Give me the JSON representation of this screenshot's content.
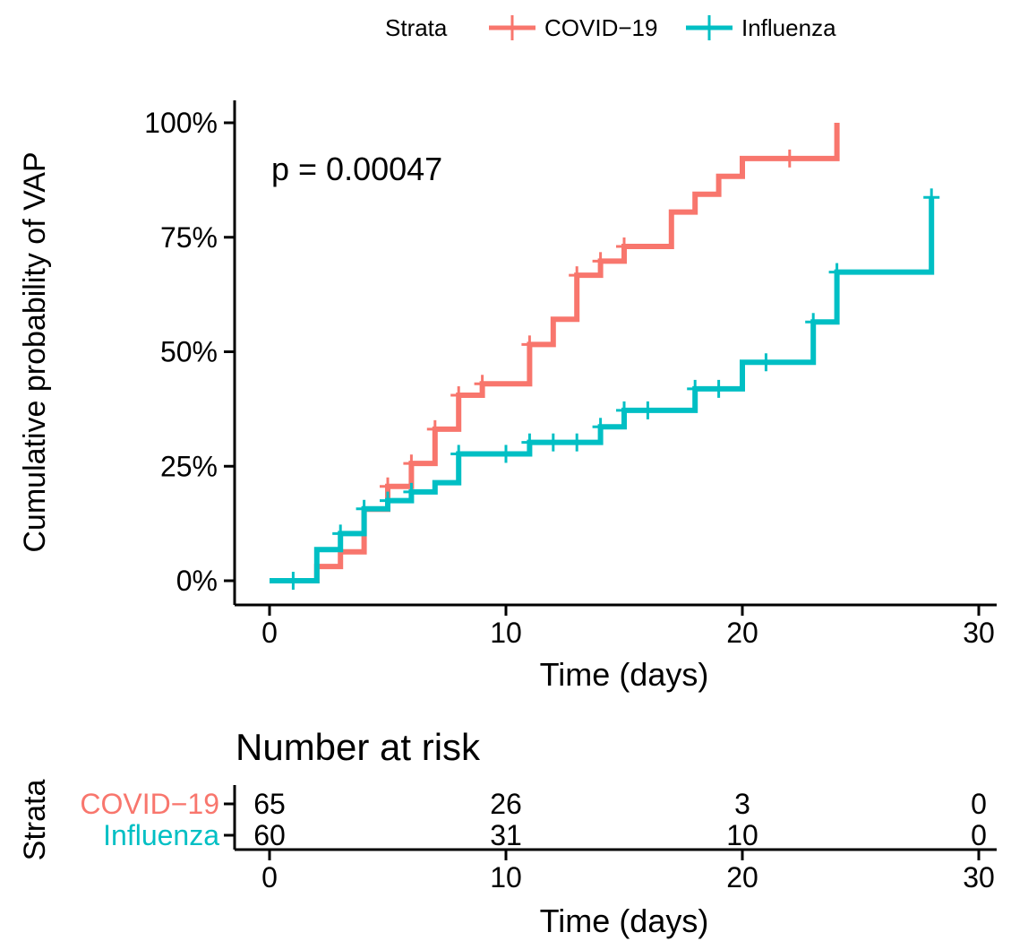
{
  "chart_data": {
    "type": "line",
    "subtype": "kaplan-meier-cumulative-incidence",
    "ylabel": "Cumulative probability of VAP",
    "xlabel": "Time (days)",
    "xlim": [
      0,
      30
    ],
    "ylim": [
      0,
      1
    ],
    "x_ticks": [
      "0",
      "10",
      "20",
      "30"
    ],
    "x_tick_values": [
      0,
      10,
      20,
      30
    ],
    "y_ticks": [
      "0%",
      "25%",
      "50%",
      "75%",
      "100%"
    ],
    "y_tick_values": [
      0,
      0.25,
      0.5,
      0.75,
      1.0
    ],
    "annotation": "p = 0.00047",
    "grid": false,
    "legend": {
      "title": "Strata",
      "position": "top",
      "entries": [
        "COVID−19",
        "Influenza"
      ]
    },
    "series": [
      {
        "name": "COVID−19",
        "color": "#F8766D",
        "steps": [
          [
            0,
            0
          ],
          [
            2,
            0.031
          ],
          [
            3,
            0.063
          ],
          [
            4,
            0.156
          ],
          [
            5,
            0.206
          ],
          [
            6,
            0.256
          ],
          [
            7,
            0.331
          ],
          [
            8,
            0.405
          ],
          [
            9,
            0.43
          ],
          [
            11,
            0.516
          ],
          [
            12,
            0.571
          ],
          [
            13,
            0.667
          ],
          [
            14,
            0.698
          ],
          [
            15,
            0.73
          ],
          [
            17,
            0.805
          ],
          [
            18,
            0.844
          ],
          [
            19,
            0.883
          ],
          [
            20,
            0.922
          ],
          [
            24,
            1.0
          ]
        ],
        "end_x": 24,
        "censor_times": [
          5,
          6,
          7,
          8,
          9,
          11,
          13,
          14,
          15,
          22
        ]
      },
      {
        "name": "Influenza",
        "color": "#00BFC4",
        "steps": [
          [
            0,
            0
          ],
          [
            2,
            0.068
          ],
          [
            3,
            0.103
          ],
          [
            4,
            0.157
          ],
          [
            5,
            0.175
          ],
          [
            6,
            0.194
          ],
          [
            7,
            0.214
          ],
          [
            8,
            0.277
          ],
          [
            11,
            0.302
          ],
          [
            14,
            0.336
          ],
          [
            15,
            0.372
          ],
          [
            18,
            0.419
          ],
          [
            20,
            0.477
          ],
          [
            23,
            0.565
          ],
          [
            24,
            0.674
          ],
          [
            28,
            0.837
          ]
        ],
        "end_x": 28,
        "censor_times": [
          1,
          3,
          4,
          5,
          6,
          8,
          10,
          11,
          12,
          13,
          14,
          15,
          16,
          18,
          19,
          21,
          23,
          24,
          28
        ]
      }
    ],
    "risk_table": {
      "title": "Number at risk",
      "ylabel": "Strata",
      "xlabel": "Time (days)",
      "times": [
        0,
        10,
        20,
        30
      ],
      "time_labels": [
        "0",
        "10",
        "20",
        "30"
      ],
      "rows": [
        {
          "label": "COVID−19",
          "color": "#F8766D",
          "counts": [
            "65",
            "26",
            "3",
            "0"
          ]
        },
        {
          "label": "Influenza",
          "color": "#00BFC4",
          "counts": [
            "60",
            "31",
            "10",
            "0"
          ]
        }
      ]
    }
  }
}
